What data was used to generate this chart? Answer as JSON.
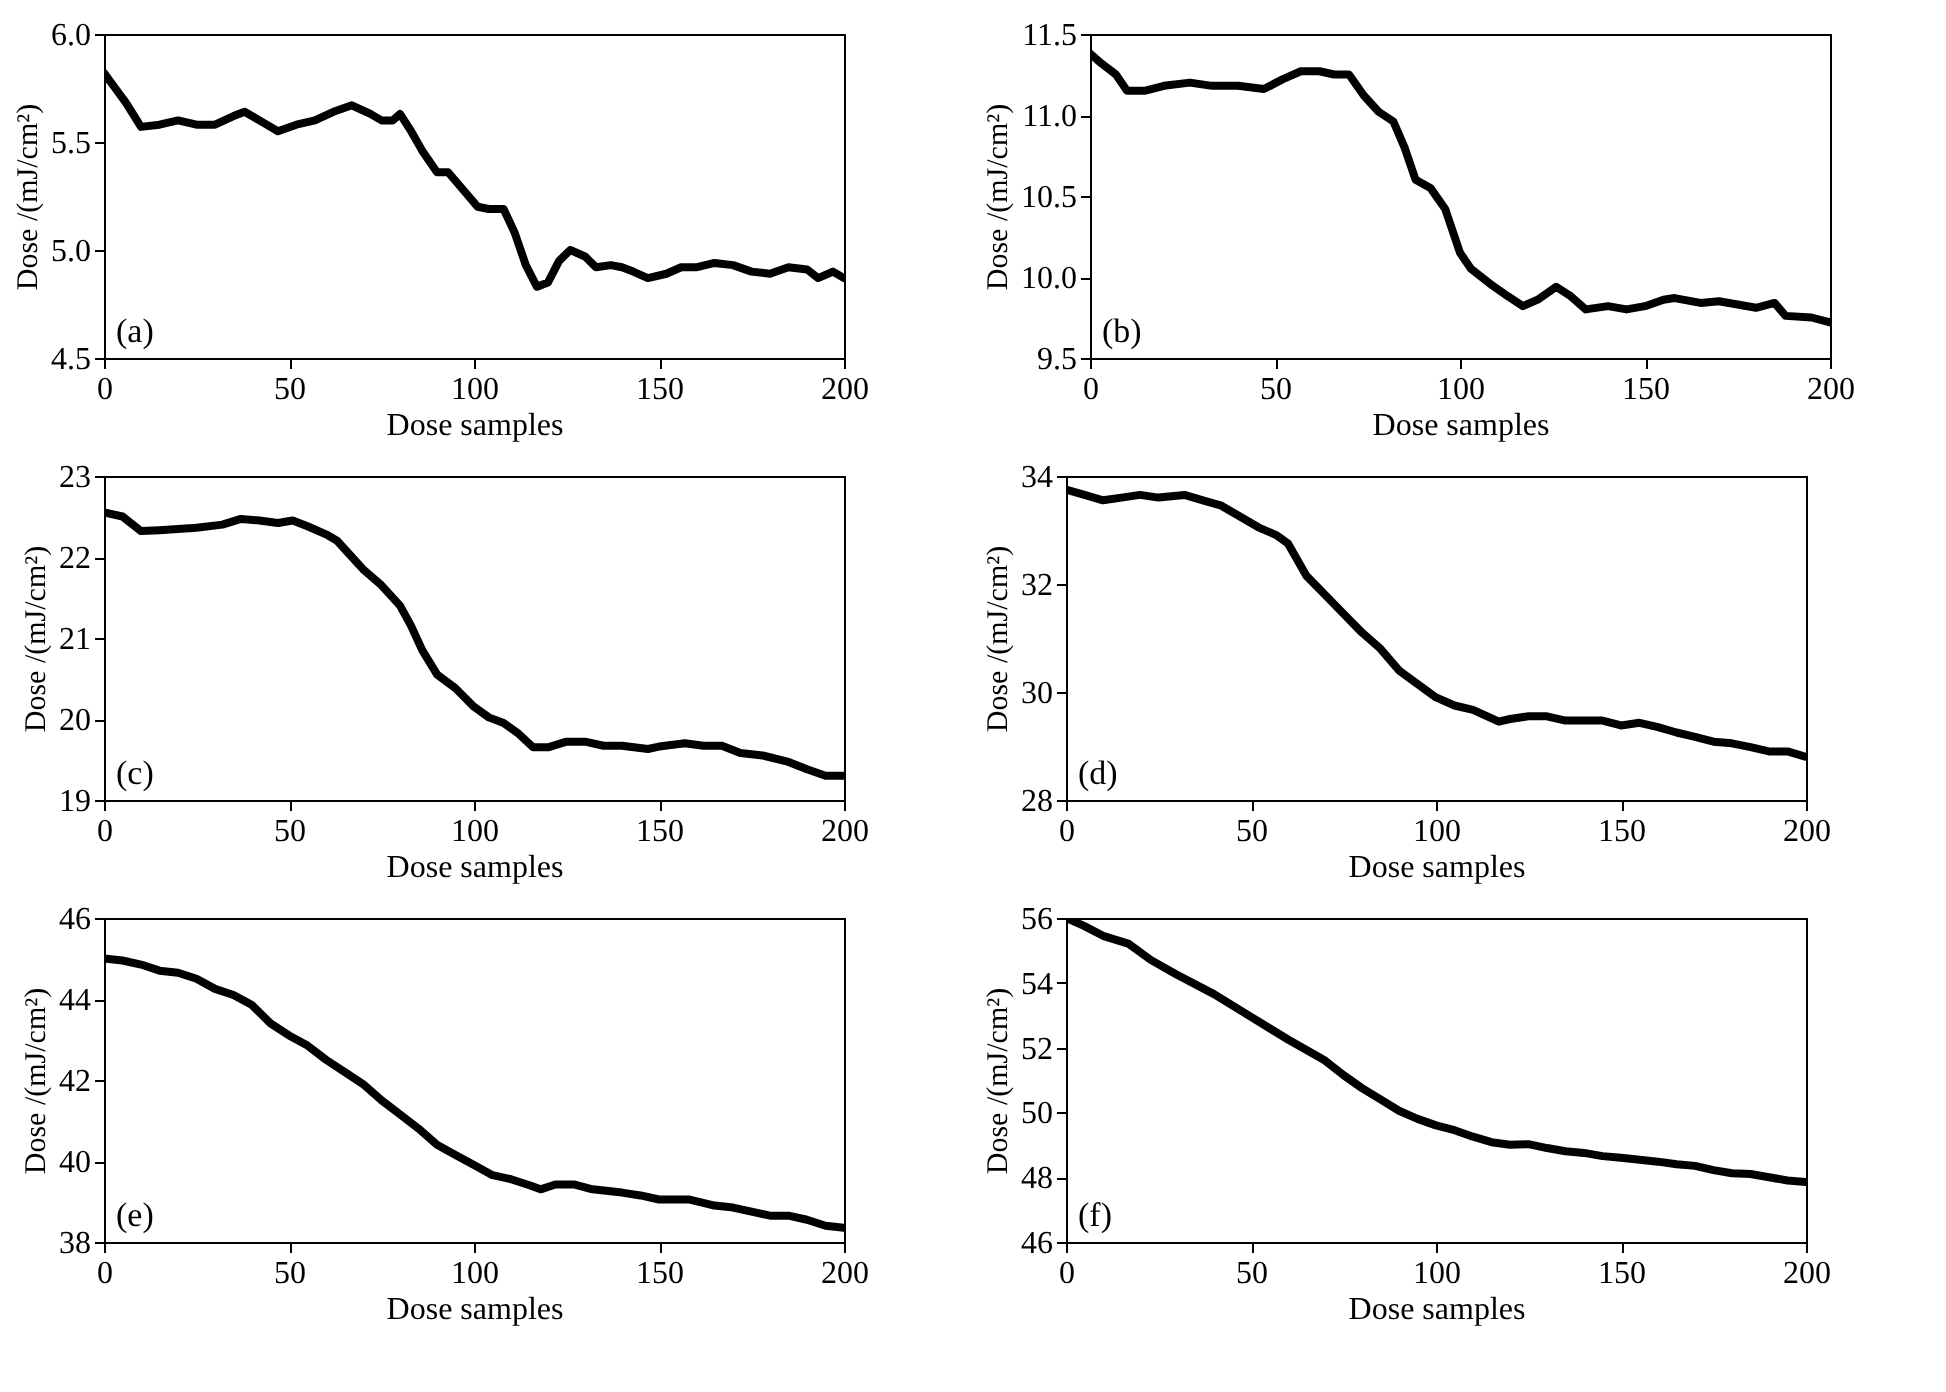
{
  "chart_data": [
    {
      "type": "line",
      "xlabel": "Dose samples",
      "ylabel": "Dose /(mJ/cm²)",
      "annotations": [
        "(a)"
      ],
      "xlim": [
        0,
        200
      ],
      "xticks": [
        0,
        50,
        100,
        150,
        200
      ],
      "ylim": [
        4.5,
        6.0
      ],
      "yticks": [
        4.5,
        {
          "value": 5,
          "label": "5.0"
        },
        5.5,
        {
          "value": 6,
          "label": "6.0"
        }
      ],
      "grid": false,
      "series": [
        {
          "color": "#000000",
          "x": [
            0,
            3,
            6,
            10,
            15,
            20,
            25,
            30,
            35,
            38,
            42,
            47,
            52,
            57,
            62,
            67,
            72,
            75,
            78,
            80,
            83,
            86,
            90,
            93,
            97,
            101,
            104,
            108,
            111,
            114,
            117,
            120,
            123,
            126,
            130,
            133,
            137,
            140,
            143,
            147,
            152,
            156,
            160,
            165,
            170,
            175,
            180,
            185,
            190,
            193,
            197,
            200
          ],
          "values": [
            5.82,
            5.75,
            5.68,
            5.57,
            5.58,
            5.6,
            5.58,
            5.58,
            5.62,
            5.64,
            5.6,
            5.55,
            5.58,
            5.6,
            5.64,
            5.67,
            5.63,
            5.6,
            5.6,
            5.63,
            5.55,
            5.46,
            5.36,
            5.36,
            5.28,
            5.2,
            5.19,
            5.19,
            5.08,
            4.93,
            4.83,
            4.85,
            4.95,
            5.0,
            4.97,
            4.92,
            4.93,
            4.92,
            4.9,
            4.87,
            4.89,
            4.92,
            4.92,
            4.94,
            4.93,
            4.9,
            4.89,
            4.92,
            4.91,
            4.87,
            4.9,
            4.87
          ]
        }
      ]
    },
    {
      "type": "line",
      "xlabel": "Dose samples",
      "ylabel": "Dose /(mJ/cm²)",
      "annotations": [
        "(b)"
      ],
      "xlim": [
        0,
        200
      ],
      "xticks": [
        0,
        50,
        100,
        150,
        200
      ],
      "ylim": [
        9.5,
        11.5
      ],
      "yticks": [
        9.5,
        {
          "value": 10,
          "label": "10.0"
        },
        10.5,
        {
          "value": 11,
          "label": "11.0"
        },
        11.5
      ],
      "grid": false,
      "series": [
        {
          "color": "#000000",
          "x": [
            0,
            3,
            7,
            10,
            15,
            20,
            27,
            33,
            40,
            47,
            52,
            57,
            62,
            66,
            70,
            74,
            78,
            82,
            85,
            88,
            92,
            96,
            100,
            103,
            108,
            113,
            117,
            121,
            126,
            130,
            134,
            140,
            145,
            150,
            155,
            158,
            165,
            170,
            175,
            180,
            185,
            188,
            195,
            200
          ],
          "values": [
            11.38,
            11.32,
            11.25,
            11.15,
            11.15,
            11.18,
            11.2,
            11.18,
            11.18,
            11.16,
            11.22,
            11.27,
            11.27,
            11.25,
            11.25,
            11.12,
            11.02,
            10.96,
            10.8,
            10.6,
            10.55,
            10.42,
            10.15,
            10.05,
            9.96,
            9.88,
            9.82,
            9.86,
            9.94,
            9.88,
            9.8,
            9.82,
            9.8,
            9.82,
            9.86,
            9.87,
            9.84,
            9.85,
            9.83,
            9.81,
            9.84,
            9.76,
            9.75,
            9.72
          ]
        }
      ]
    },
    {
      "type": "line",
      "xlabel": "Dose samples",
      "ylabel": "Dose /(mJ/cm²)",
      "annotations": [
        "(c)"
      ],
      "xlim": [
        0,
        200
      ],
      "xticks": [
        0,
        50,
        100,
        150,
        200
      ],
      "ylim": [
        19,
        23
      ],
      "yticks": [
        19,
        20,
        21,
        22,
        23
      ],
      "grid": false,
      "series": [
        {
          "color": "#000000",
          "x": [
            0,
            5,
            10,
            15,
            25,
            32,
            37,
            42,
            47,
            51,
            55,
            60,
            63,
            67,
            70,
            75,
            80,
            83,
            86,
            90,
            95,
            100,
            104,
            108,
            112,
            116,
            120,
            125,
            130,
            135,
            140,
            147,
            150,
            157,
            162,
            167,
            172,
            178,
            185,
            190,
            195,
            200
          ],
          "values": [
            22.55,
            22.5,
            22.32,
            22.33,
            22.36,
            22.4,
            22.47,
            22.45,
            22.42,
            22.45,
            22.38,
            22.28,
            22.2,
            22.0,
            21.85,
            21.65,
            21.4,
            21.15,
            20.85,
            20.55,
            20.38,
            20.15,
            20.02,
            19.95,
            19.82,
            19.65,
            19.65,
            19.72,
            19.72,
            19.67,
            19.67,
            19.63,
            19.66,
            19.7,
            19.67,
            19.67,
            19.58,
            19.55,
            19.47,
            19.38,
            19.3,
            19.3
          ]
        }
      ]
    },
    {
      "type": "line",
      "xlabel": "Dose samples",
      "ylabel": "Dose /(mJ/cm²)",
      "annotations": [
        "(d)"
      ],
      "xlim": [
        0,
        200
      ],
      "xticks": [
        0,
        50,
        100,
        150,
        200
      ],
      "ylim": [
        28,
        34
      ],
      "yticks": [
        28,
        30,
        32,
        34
      ],
      "grid": false,
      "series": [
        {
          "color": "#000000",
          "x": [
            0,
            5,
            10,
            15,
            20,
            25,
            32,
            37,
            42,
            47,
            52,
            57,
            60,
            65,
            70,
            75,
            80,
            85,
            90,
            95,
            100,
            105,
            110,
            117,
            120,
            125,
            130,
            135,
            145,
            150,
            155,
            160,
            165,
            170,
            175,
            180,
            185,
            190,
            195,
            200
          ],
          "values": [
            33.75,
            33.65,
            33.55,
            33.6,
            33.65,
            33.6,
            33.65,
            33.55,
            33.45,
            33.25,
            33.05,
            32.9,
            32.75,
            32.15,
            31.8,
            31.45,
            31.1,
            30.8,
            30.4,
            30.15,
            29.9,
            29.75,
            29.67,
            29.45,
            29.5,
            29.55,
            29.55,
            29.47,
            29.47,
            29.38,
            29.43,
            29.35,
            29.25,
            29.17,
            29.08,
            29.05,
            28.98,
            28.9,
            28.9,
            28.8
          ]
        }
      ]
    },
    {
      "type": "line",
      "xlabel": "Dose samples",
      "ylabel": "Dose /(mJ/cm²)",
      "annotations": [
        "(e)"
      ],
      "xlim": [
        0,
        200
      ],
      "xticks": [
        0,
        50,
        100,
        150,
        200
      ],
      "ylim": [
        38,
        46
      ],
      "yticks": [
        38,
        40,
        42,
        44,
        46
      ],
      "grid": false,
      "series": [
        {
          "color": "#000000",
          "x": [
            0,
            5,
            10,
            15,
            20,
            25,
            30,
            35,
            40,
            45,
            50,
            55,
            60,
            65,
            70,
            75,
            80,
            85,
            90,
            95,
            100,
            105,
            110,
            115,
            118,
            122,
            127,
            132,
            140,
            145,
            150,
            158,
            165,
            170,
            175,
            180,
            185,
            190,
            195,
            200
          ],
          "values": [
            45.0,
            44.95,
            44.85,
            44.7,
            44.65,
            44.5,
            44.25,
            44.1,
            43.85,
            43.4,
            43.1,
            42.85,
            42.5,
            42.2,
            41.9,
            41.5,
            41.15,
            40.8,
            40.4,
            40.15,
            39.9,
            39.65,
            39.55,
            39.4,
            39.3,
            39.42,
            39.42,
            39.3,
            39.22,
            39.15,
            39.05,
            39.05,
            38.9,
            38.85,
            38.75,
            38.65,
            38.65,
            38.55,
            38.4,
            38.35
          ]
        }
      ]
    },
    {
      "type": "line",
      "xlabel": "Dose samples",
      "ylabel": "Dose /(mJ/cm²)",
      "annotations": [
        "(f)"
      ],
      "xlim": [
        0,
        200
      ],
      "xticks": [
        0,
        50,
        100,
        150,
        200
      ],
      "ylim": [
        46,
        56
      ],
      "yticks": [
        46,
        48,
        50,
        52,
        54,
        56
      ],
      "grid": false,
      "series": [
        {
          "color": "#000000",
          "x": [
            0,
            5,
            10,
            17,
            23,
            30,
            40,
            50,
            60,
            70,
            75,
            80,
            85,
            90,
            95,
            100,
            105,
            110,
            115,
            120,
            125,
            130,
            135,
            140,
            145,
            150,
            160,
            165,
            170,
            175,
            180,
            185,
            190,
            195,
            200
          ],
          "values": [
            56.0,
            55.75,
            55.45,
            55.2,
            54.7,
            54.25,
            53.65,
            52.95,
            52.25,
            51.6,
            51.15,
            50.75,
            50.4,
            50.05,
            49.8,
            49.6,
            49.45,
            49.25,
            49.08,
            49.0,
            49.02,
            48.9,
            48.8,
            48.75,
            48.65,
            48.6,
            48.48,
            48.4,
            48.35,
            48.22,
            48.12,
            48.1,
            48.0,
            47.9,
            47.85
          ]
        }
      ]
    }
  ]
}
